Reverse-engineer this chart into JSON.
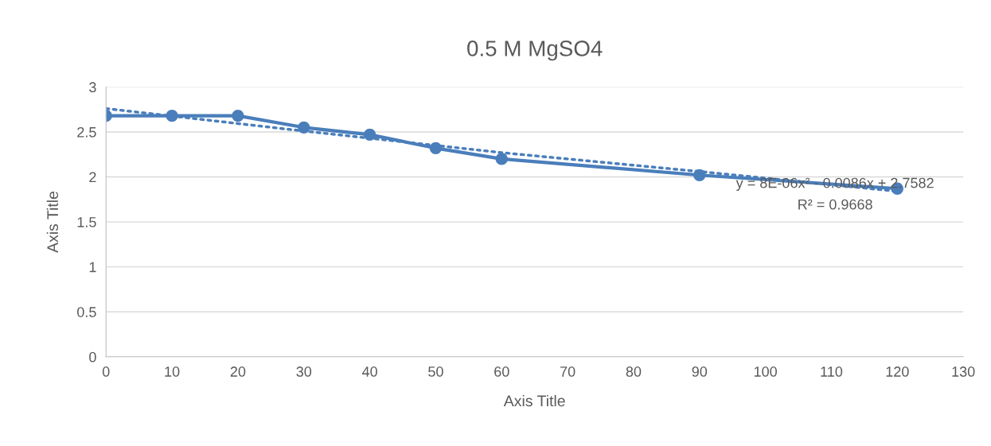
{
  "chart_data": {
    "type": "line",
    "title": "0.5 M MgSO4",
    "xlabel": "Axis Title",
    "ylabel": "Axis Title",
    "series": [
      {
        "color": "#4a7ebb",
        "marker": "circle",
        "line_style": "solid",
        "x": [
          0,
          10,
          20,
          30,
          40,
          50,
          60,
          90,
          120
        ],
        "values": [
          2.68,
          2.68,
          2.68,
          2.55,
          2.47,
          2.32,
          2.2,
          2.02,
          1.87
        ]
      },
      {
        "color": "#4a7ebb",
        "marker": "none",
        "line_style": "dotted",
        "x": [
          0,
          30,
          60,
          90,
          120
        ],
        "values": [
          2.76,
          2.51,
          2.27,
          2.06,
          1.84
        ]
      }
    ],
    "annotations": [
      "y = 8E-06x² - 0.0086x + 2.7582",
      "R² = 0.9668"
    ],
    "xlim": [
      0,
      130
    ],
    "xticks": [
      0,
      10,
      20,
      30,
      40,
      50,
      60,
      70,
      80,
      90,
      100,
      110,
      120,
      130
    ],
    "ylim": [
      0,
      3
    ],
    "yticks": [
      0,
      0.5,
      1,
      1.5,
      2,
      2.5,
      3
    ],
    "grid": "y",
    "legend": false
  }
}
